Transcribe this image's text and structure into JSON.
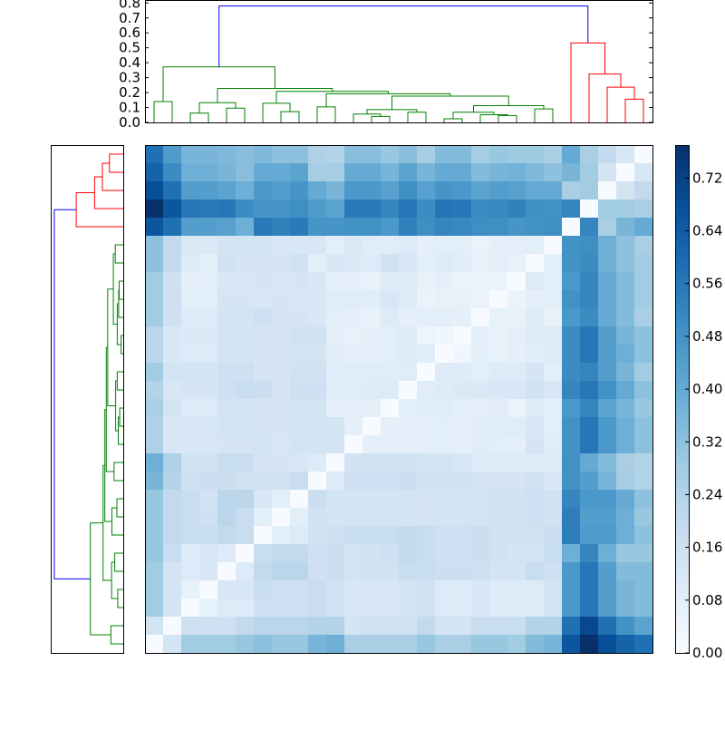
{
  "chart_data": {
    "type": "heatmap",
    "title": "",
    "colormap": "Blues",
    "vmin": 0.0,
    "vmax": 0.77,
    "colorbar": {
      "ticks": [
        0.0,
        0.08,
        0.16,
        0.24,
        0.32,
        0.4,
        0.48,
        0.56,
        0.64,
        0.72
      ],
      "tick_labels": [
        "0.00",
        "0.08",
        "0.16",
        "0.24",
        "0.32",
        "0.40",
        "0.48",
        "0.56",
        "0.64",
        "0.72"
      ],
      "placement": "right"
    },
    "top_dendrogram": {
      "ylim": [
        0,
        0.82
      ],
      "ticks": [
        0.0,
        0.1,
        0.2,
        0.3,
        0.4,
        0.5,
        0.6,
        0.7,
        0.8
      ],
      "tick_labels": [
        "0.0",
        "0.1",
        "0.2",
        "0.3",
        "0.4",
        "0.5",
        "0.6",
        "0.7",
        "0.8"
      ]
    },
    "left_dendrogram": {
      "xlim": [
        0.82,
        0
      ],
      "rows_reversed": true
    },
    "leaf_count": 28,
    "merges": [
      [
        0,
        1,
        0.14,
        "g"
      ],
      [
        2,
        3,
        0.062,
        "g"
      ],
      [
        4,
        5,
        0.096,
        "g"
      ],
      [
        29,
        30,
        0.132,
        "g"
      ],
      [
        7,
        8,
        0.072,
        "g"
      ],
      [
        6,
        32,
        0.128,
        "g"
      ],
      [
        9,
        10,
        0.104,
        "g"
      ],
      [
        12,
        13,
        0.04,
        "g"
      ],
      [
        11,
        35,
        0.056,
        "g"
      ],
      [
        14,
        15,
        0.068,
        "g"
      ],
      [
        36,
        37,
        0.086,
        "g"
      ],
      [
        16,
        17,
        0.024,
        "g"
      ],
      [
        19,
        20,
        0.046,
        "g"
      ],
      [
        18,
        40,
        0.052,
        "g"
      ],
      [
        39,
        41,
        0.068,
        "g"
      ],
      [
        21,
        22,
        0.09,
        "g"
      ],
      [
        42,
        43,
        0.112,
        "g"
      ],
      [
        38,
        44,
        0.176,
        "g"
      ],
      [
        34,
        45,
        0.192,
        "g"
      ],
      [
        33,
        46,
        0.208,
        "g"
      ],
      [
        31,
        47,
        0.228,
        "g"
      ],
      [
        28,
        48,
        0.372,
        "g"
      ],
      [
        26,
        27,
        0.156,
        "r"
      ],
      [
        25,
        50,
        0.236,
        "r"
      ],
      [
        24,
        51,
        0.324,
        "r"
      ],
      [
        23,
        52,
        0.532,
        "r"
      ],
      [
        49,
        53,
        0.78,
        "b"
      ]
    ],
    "link_colors": {
      "g": "#008000",
      "r": "#ff0000",
      "b": "#0000ff"
    },
    "matrix_rows_top_to_bottom": [
      [
        0.58,
        0.45,
        0.36,
        0.36,
        0.35,
        0.33,
        0.35,
        0.32,
        0.32,
        0.25,
        0.24,
        0.33,
        0.33,
        0.3,
        0.33,
        0.27,
        0.34,
        0.34,
        0.27,
        0.3,
        0.29,
        0.29,
        0.26,
        0.4,
        0.26,
        0.2,
        0.12,
        0.0
      ],
      [
        0.62,
        0.5,
        0.38,
        0.38,
        0.36,
        0.33,
        0.4,
        0.4,
        0.42,
        0.27,
        0.27,
        0.4,
        0.4,
        0.36,
        0.42,
        0.36,
        0.4,
        0.4,
        0.34,
        0.36,
        0.37,
        0.35,
        0.32,
        0.36,
        0.28,
        0.14,
        0.0,
        0.12
      ],
      [
        0.68,
        0.58,
        0.44,
        0.44,
        0.42,
        0.38,
        0.46,
        0.44,
        0.47,
        0.4,
        0.36,
        0.46,
        0.46,
        0.43,
        0.49,
        0.43,
        0.47,
        0.46,
        0.42,
        0.44,
        0.43,
        0.4,
        0.4,
        0.26,
        0.28,
        0.0,
        0.14,
        0.2
      ],
      [
        0.77,
        0.66,
        0.56,
        0.55,
        0.56,
        0.5,
        0.47,
        0.47,
        0.49,
        0.45,
        0.42,
        0.55,
        0.55,
        0.52,
        0.56,
        0.5,
        0.57,
        0.56,
        0.5,
        0.51,
        0.53,
        0.49,
        0.48,
        0.52,
        0.0,
        0.28,
        0.28,
        0.26
      ],
      [
        0.66,
        0.58,
        0.44,
        0.44,
        0.43,
        0.38,
        0.55,
        0.53,
        0.55,
        0.47,
        0.47,
        0.48,
        0.48,
        0.46,
        0.53,
        0.49,
        0.52,
        0.51,
        0.49,
        0.49,
        0.47,
        0.48,
        0.49,
        0.0,
        0.52,
        0.26,
        0.36,
        0.4
      ],
      [
        0.32,
        0.2,
        0.11,
        0.11,
        0.14,
        0.14,
        0.14,
        0.12,
        0.12,
        0.12,
        0.08,
        0.11,
        0.09,
        0.09,
        0.1,
        0.07,
        0.08,
        0.08,
        0.05,
        0.07,
        0.07,
        0.08,
        0.0,
        0.48,
        0.49,
        0.38,
        0.32,
        0.26
      ],
      [
        0.32,
        0.2,
        0.1,
        0.08,
        0.15,
        0.13,
        0.13,
        0.13,
        0.15,
        0.08,
        0.12,
        0.11,
        0.1,
        0.15,
        0.12,
        0.08,
        0.1,
        0.09,
        0.06,
        0.07,
        0.06,
        0.0,
        0.08,
        0.48,
        0.5,
        0.38,
        0.32,
        0.28
      ],
      [
        0.28,
        0.16,
        0.07,
        0.07,
        0.12,
        0.12,
        0.13,
        0.12,
        0.13,
        0.12,
        0.07,
        0.07,
        0.06,
        0.1,
        0.1,
        0.06,
        0.07,
        0.05,
        0.05,
        0.05,
        0.0,
        0.1,
        0.08,
        0.46,
        0.52,
        0.4,
        0.34,
        0.28
      ],
      [
        0.28,
        0.16,
        0.08,
        0.08,
        0.13,
        0.13,
        0.12,
        0.13,
        0.12,
        0.12,
        0.09,
        0.09,
        0.09,
        0.12,
        0.1,
        0.05,
        0.06,
        0.06,
        0.05,
        0.0,
        0.05,
        0.07,
        0.08,
        0.48,
        0.52,
        0.4,
        0.34,
        0.28
      ],
      [
        0.28,
        0.16,
        0.1,
        0.1,
        0.14,
        0.14,
        0.16,
        0.13,
        0.13,
        0.12,
        0.08,
        0.07,
        0.06,
        0.1,
        0.07,
        0.08,
        0.08,
        0.07,
        0.0,
        0.06,
        0.06,
        0.1,
        0.06,
        0.46,
        0.5,
        0.4,
        0.34,
        0.26
      ],
      [
        0.22,
        0.12,
        0.11,
        0.11,
        0.14,
        0.14,
        0.13,
        0.13,
        0.15,
        0.15,
        0.07,
        0.06,
        0.07,
        0.08,
        0.1,
        0.04,
        0.03,
        0.0,
        0.07,
        0.06,
        0.07,
        0.1,
        0.1,
        0.5,
        0.56,
        0.44,
        0.36,
        0.32
      ],
      [
        0.22,
        0.12,
        0.1,
        0.1,
        0.14,
        0.14,
        0.13,
        0.13,
        0.14,
        0.14,
        0.09,
        0.07,
        0.07,
        0.08,
        0.1,
        0.09,
        0.0,
        0.03,
        0.08,
        0.06,
        0.07,
        0.09,
        0.1,
        0.5,
        0.56,
        0.44,
        0.38,
        0.32
      ],
      [
        0.28,
        0.14,
        0.14,
        0.14,
        0.16,
        0.16,
        0.13,
        0.13,
        0.15,
        0.15,
        0.09,
        0.09,
        0.09,
        0.09,
        0.09,
        0.0,
        0.1,
        0.1,
        0.08,
        0.1,
        0.1,
        0.13,
        0.08,
        0.5,
        0.52,
        0.44,
        0.36,
        0.28
      ],
      [
        0.24,
        0.12,
        0.13,
        0.13,
        0.16,
        0.18,
        0.17,
        0.13,
        0.16,
        0.16,
        0.09,
        0.09,
        0.1,
        0.1,
        0.0,
        0.09,
        0.1,
        0.11,
        0.11,
        0.12,
        0.12,
        0.15,
        0.12,
        0.52,
        0.56,
        0.48,
        0.4,
        0.32
      ],
      [
        0.26,
        0.14,
        0.1,
        0.1,
        0.14,
        0.14,
        0.13,
        0.13,
        0.14,
        0.14,
        0.07,
        0.07,
        0.07,
        0.0,
        0.08,
        0.09,
        0.09,
        0.08,
        0.07,
        0.09,
        0.05,
        0.1,
        0.08,
        0.46,
        0.52,
        0.42,
        0.36,
        0.3
      ],
      [
        0.25,
        0.12,
        0.12,
        0.12,
        0.14,
        0.14,
        0.13,
        0.13,
        0.14,
        0.14,
        0.14,
        0.07,
        0.0,
        0.07,
        0.07,
        0.07,
        0.08,
        0.07,
        0.09,
        0.09,
        0.09,
        0.12,
        0.08,
        0.48,
        0.56,
        0.46,
        0.38,
        0.32
      ],
      [
        0.25,
        0.12,
        0.12,
        0.12,
        0.13,
        0.13,
        0.14,
        0.12,
        0.14,
        0.14,
        0.14,
        0.0,
        0.07,
        0.07,
        0.07,
        0.07,
        0.08,
        0.07,
        0.09,
        0.08,
        0.07,
        0.13,
        0.09,
        0.48,
        0.56,
        0.46,
        0.38,
        0.32
      ],
      [
        0.38,
        0.25,
        0.15,
        0.15,
        0.18,
        0.18,
        0.13,
        0.13,
        0.12,
        0.1,
        0.0,
        0.15,
        0.15,
        0.15,
        0.15,
        0.14,
        0.14,
        0.12,
        0.1,
        0.1,
        0.1,
        0.1,
        0.1,
        0.48,
        0.4,
        0.34,
        0.26,
        0.24
      ],
      [
        0.36,
        0.24,
        0.16,
        0.17,
        0.17,
        0.15,
        0.15,
        0.15,
        0.18,
        0.0,
        0.1,
        0.16,
        0.16,
        0.16,
        0.17,
        0.15,
        0.15,
        0.15,
        0.13,
        0.13,
        0.13,
        0.15,
        0.12,
        0.48,
        0.44,
        0.36,
        0.27,
        0.24
      ],
      [
        0.3,
        0.2,
        0.18,
        0.15,
        0.22,
        0.22,
        0.12,
        0.08,
        0.0,
        0.17,
        0.14,
        0.14,
        0.14,
        0.14,
        0.14,
        0.13,
        0.14,
        0.14,
        0.14,
        0.15,
        0.15,
        0.16,
        0.15,
        0.52,
        0.46,
        0.46,
        0.4,
        0.32
      ],
      [
        0.3,
        0.2,
        0.18,
        0.16,
        0.22,
        0.18,
        0.08,
        0.0,
        0.08,
        0.15,
        0.14,
        0.14,
        0.14,
        0.14,
        0.14,
        0.13,
        0.14,
        0.14,
        0.14,
        0.15,
        0.15,
        0.16,
        0.15,
        0.54,
        0.44,
        0.44,
        0.38,
        0.3
      ],
      [
        0.3,
        0.2,
        0.18,
        0.18,
        0.2,
        0.18,
        0.0,
        0.08,
        0.1,
        0.15,
        0.16,
        0.18,
        0.18,
        0.18,
        0.2,
        0.18,
        0.16,
        0.16,
        0.17,
        0.15,
        0.15,
        0.15,
        0.17,
        0.54,
        0.45,
        0.45,
        0.38,
        0.32
      ],
      [
        0.3,
        0.18,
        0.1,
        0.12,
        0.1,
        0.0,
        0.18,
        0.2,
        0.2,
        0.16,
        0.17,
        0.14,
        0.15,
        0.16,
        0.2,
        0.18,
        0.16,
        0.16,
        0.17,
        0.15,
        0.14,
        0.14,
        0.18,
        0.38,
        0.52,
        0.38,
        0.3,
        0.3
      ],
      [
        0.28,
        0.14,
        0.1,
        0.12,
        0.0,
        0.1,
        0.2,
        0.22,
        0.22,
        0.16,
        0.17,
        0.14,
        0.15,
        0.15,
        0.18,
        0.18,
        0.17,
        0.17,
        0.16,
        0.14,
        0.14,
        0.18,
        0.16,
        0.46,
        0.56,
        0.44,
        0.34,
        0.34
      ],
      [
        0.28,
        0.14,
        0.06,
        0.0,
        0.12,
        0.12,
        0.18,
        0.16,
        0.16,
        0.18,
        0.15,
        0.12,
        0.12,
        0.12,
        0.14,
        0.15,
        0.1,
        0.1,
        0.12,
        0.1,
        0.1,
        0.1,
        0.14,
        0.46,
        0.56,
        0.44,
        0.36,
        0.34
      ],
      [
        0.28,
        0.14,
        0.0,
        0.06,
        0.1,
        0.1,
        0.16,
        0.16,
        0.16,
        0.18,
        0.15,
        0.12,
        0.12,
        0.12,
        0.14,
        0.15,
        0.1,
        0.1,
        0.12,
        0.1,
        0.1,
        0.1,
        0.14,
        0.46,
        0.56,
        0.44,
        0.36,
        0.34
      ],
      [
        0.14,
        0.0,
        0.16,
        0.16,
        0.16,
        0.2,
        0.22,
        0.22,
        0.22,
        0.24,
        0.24,
        0.14,
        0.15,
        0.15,
        0.15,
        0.2,
        0.14,
        0.14,
        0.18,
        0.18,
        0.18,
        0.24,
        0.24,
        0.58,
        0.7,
        0.58,
        0.48,
        0.42
      ],
      [
        0.0,
        0.14,
        0.28,
        0.28,
        0.28,
        0.3,
        0.32,
        0.3,
        0.3,
        0.36,
        0.38,
        0.26,
        0.26,
        0.26,
        0.26,
        0.3,
        0.26,
        0.26,
        0.3,
        0.3,
        0.28,
        0.34,
        0.36,
        0.66,
        0.77,
        0.68,
        0.62,
        0.58
      ]
    ]
  }
}
